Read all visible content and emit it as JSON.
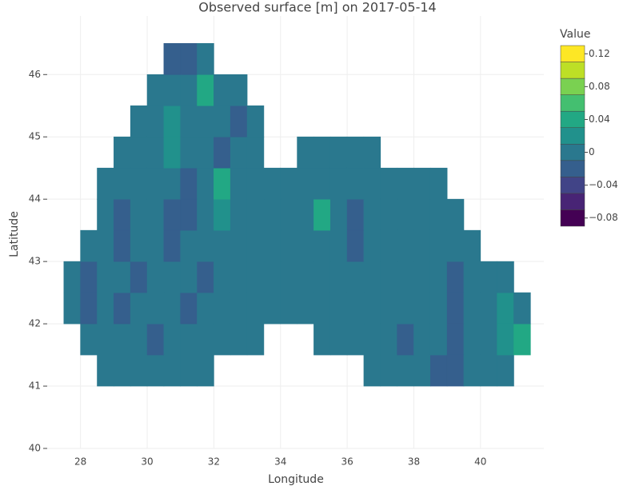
{
  "chart_data": {
    "type": "contour",
    "title": "Observed surface [m] on 2017-05-14",
    "x_label": "Longitude",
    "y_label": "Latitude",
    "colorbar_title": "Value",
    "xlim": [
      27,
      41.9
    ],
    "ylim": [
      40,
      46.94
    ],
    "xticks": [
      28,
      30,
      32,
      34,
      36,
      38,
      40
    ],
    "yticks": [
      40,
      41,
      42,
      43,
      44,
      45,
      46
    ],
    "grid": true,
    "contours": {
      "start": -0.09,
      "end": 0.13,
      "size": 0.02
    },
    "colorscale": [
      "#440154",
      "#482475",
      "#414487",
      "#355f8d",
      "#2a788e",
      "#21918c",
      "#22a884",
      "#44bf70",
      "#7ad151",
      "#bddf26",
      "#fde725"
    ],
    "colorbar_ticks": [
      {
        "value": -0.08,
        "label": "−0.08"
      },
      {
        "value": -0.04,
        "label": "−0.04"
      },
      0,
      0.04,
      0.08,
      0.12
    ],
    "x": [
      27.75,
      28.25,
      28.75,
      29.25,
      29.75,
      30.25,
      30.75,
      31.25,
      31.75,
      32.25,
      32.75,
      33.25,
      33.75,
      34.25,
      34.75,
      35.25,
      35.75,
      36.25,
      36.75,
      37.25,
      37.75,
      38.25,
      38.75,
      39.25,
      39.75,
      40.25,
      40.75,
      41.25
    ],
    "y": [
      41.25,
      41.75,
      42.25,
      42.75,
      43.25,
      43.75,
      44.25,
      44.75,
      45.25,
      45.75,
      46.25
    ],
    "z": [
      [
        null,
        null,
        0.01,
        0,
        0.01,
        -0.01,
        0,
        0.01,
        0,
        null,
        null,
        null,
        null,
        null,
        null,
        null,
        null,
        null,
        0,
        -0.01,
        0,
        0,
        -0.02,
        -0.02,
        0,
        -0.01,
        0,
        null
      ],
      [
        null,
        0.01,
        -0.01,
        0,
        0.01,
        -0.02,
        0.01,
        0,
        0.01,
        -0.01,
        0,
        0.01,
        null,
        null,
        null,
        0,
        0,
        -0.01,
        0,
        0,
        -0.02,
        -0.01,
        0,
        -0.02,
        -0.01,
        0,
        0.02,
        0.03
      ],
      [
        0.01,
        -0.02,
        0,
        -0.02,
        0.01,
        -0.01,
        0,
        -0.02,
        0,
        0.01,
        -0.01,
        0,
        -0.01,
        0,
        0,
        -0.01,
        0,
        0,
        0,
        -0.01,
        0,
        0,
        -0.01,
        -0.02,
        -0.01,
        0,
        0.02,
        0.01
      ],
      [
        0.01,
        -0.02,
        -0.01,
        0,
        -0.02,
        0,
        -0.01,
        0,
        -0.02,
        -0.01,
        0,
        -0.01,
        0,
        0,
        0,
        0,
        0,
        -0.01,
        0,
        0,
        0,
        0,
        0,
        -0.02,
        -0.01,
        0,
        -0.01,
        null
      ],
      [
        null,
        -0.01,
        0.01,
        -0.02,
        0,
        -0.01,
        -0.02,
        0,
        0.01,
        -0.01,
        0,
        -0.01,
        0,
        0,
        0,
        0,
        0,
        -0.02,
        0,
        0,
        0,
        0,
        0,
        0,
        0,
        null,
        null,
        null
      ],
      [
        null,
        null,
        0,
        -0.02,
        0.01,
        -0.01,
        -0.03,
        -0.02,
        0,
        0.02,
        -0.01,
        0,
        0,
        0,
        0,
        0.03,
        0,
        -0.03,
        0,
        -0.01,
        0,
        0,
        0,
        0,
        null,
        null,
        null,
        null
      ],
      [
        null,
        null,
        0.01,
        -0.01,
        0.01,
        0,
        -0.01,
        -0.03,
        0.01,
        0.03,
        0,
        0,
        0,
        0,
        0,
        0,
        0,
        0,
        0,
        0.01,
        0,
        0,
        0,
        null,
        null,
        null,
        null,
        null
      ],
      [
        null,
        null,
        null,
        0.01,
        0,
        0.01,
        0.02,
        0,
        0.01,
        -0.02,
        0.01,
        0,
        null,
        null,
        0,
        0,
        0,
        0,
        0,
        null,
        null,
        null,
        null,
        null,
        null,
        null,
        null,
        null
      ],
      [
        null,
        null,
        null,
        null,
        0,
        0.01,
        0.02,
        0.01,
        0.01,
        -0.01,
        -0.02,
        0,
        null,
        null,
        null,
        null,
        null,
        null,
        null,
        null,
        null,
        null,
        null,
        null,
        null,
        null,
        null,
        null
      ],
      [
        null,
        null,
        null,
        null,
        null,
        -0.01,
        0,
        0.01,
        0.04,
        -0.01,
        0,
        null,
        null,
        null,
        null,
        null,
        null,
        null,
        null,
        null,
        null,
        null,
        null,
        null,
        null,
        null,
        null,
        null
      ],
      [
        null,
        null,
        null,
        null,
        null,
        null,
        -0.03,
        -0.02,
        0.01,
        null,
        null,
        null,
        null,
        null,
        null,
        null,
        null,
        null,
        null,
        null,
        null,
        null,
        null,
        null,
        null,
        null,
        null,
        null
      ]
    ]
  }
}
